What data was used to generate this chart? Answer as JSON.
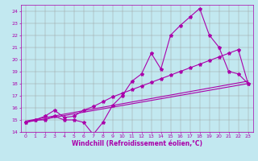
{
  "xlabel": "Windchill (Refroidissement éolien,°C)",
  "xlim": [
    -0.5,
    23.5
  ],
  "ylim": [
    14,
    24.5
  ],
  "yticks": [
    14,
    15,
    16,
    17,
    18,
    19,
    20,
    21,
    22,
    23,
    24
  ],
  "xticks": [
    0,
    1,
    2,
    3,
    4,
    5,
    6,
    7,
    8,
    9,
    10,
    11,
    12,
    13,
    14,
    15,
    16,
    17,
    18,
    19,
    20,
    21,
    22,
    23
  ],
  "bg_color": "#c2e8f0",
  "line_color": "#aa00aa",
  "grid_color": "#999999",
  "line1_x": [
    0,
    1,
    2,
    3,
    4,
    5,
    6,
    7,
    8,
    9,
    10,
    11,
    12,
    13,
    14,
    15,
    16,
    17,
    18,
    19,
    20,
    21,
    22,
    23
  ],
  "line1_y": [
    14.8,
    15.0,
    15.0,
    15.3,
    15.0,
    15.0,
    14.8,
    13.8,
    14.8,
    16.2,
    17.0,
    18.2,
    18.8,
    20.5,
    19.2,
    22.0,
    22.8,
    23.5,
    24.2,
    22.0,
    21.0,
    19.0,
    18.8,
    18.0
  ],
  "line2_x": [
    0,
    1,
    2,
    3,
    4,
    5,
    6,
    7,
    8,
    9,
    10,
    11,
    12,
    13,
    14,
    15,
    16,
    17,
    18,
    19,
    20,
    21,
    22,
    23
  ],
  "line2_y": [
    14.8,
    15.0,
    15.3,
    15.8,
    15.2,
    15.3,
    15.8,
    16.1,
    16.5,
    16.9,
    17.2,
    17.5,
    17.8,
    18.1,
    18.4,
    18.7,
    19.0,
    19.3,
    19.6,
    19.9,
    20.2,
    20.5,
    20.8,
    18.0
  ],
  "line3_x": [
    0,
    23
  ],
  "line3_y": [
    14.8,
    18.0
  ],
  "line4_x": [
    0,
    23
  ],
  "line4_y": [
    14.9,
    18.2
  ],
  "marker": "*",
  "markersize": 3,
  "linewidth": 0.8,
  "tick_fontsize": 4.5,
  "xlabel_fontsize": 5.5
}
